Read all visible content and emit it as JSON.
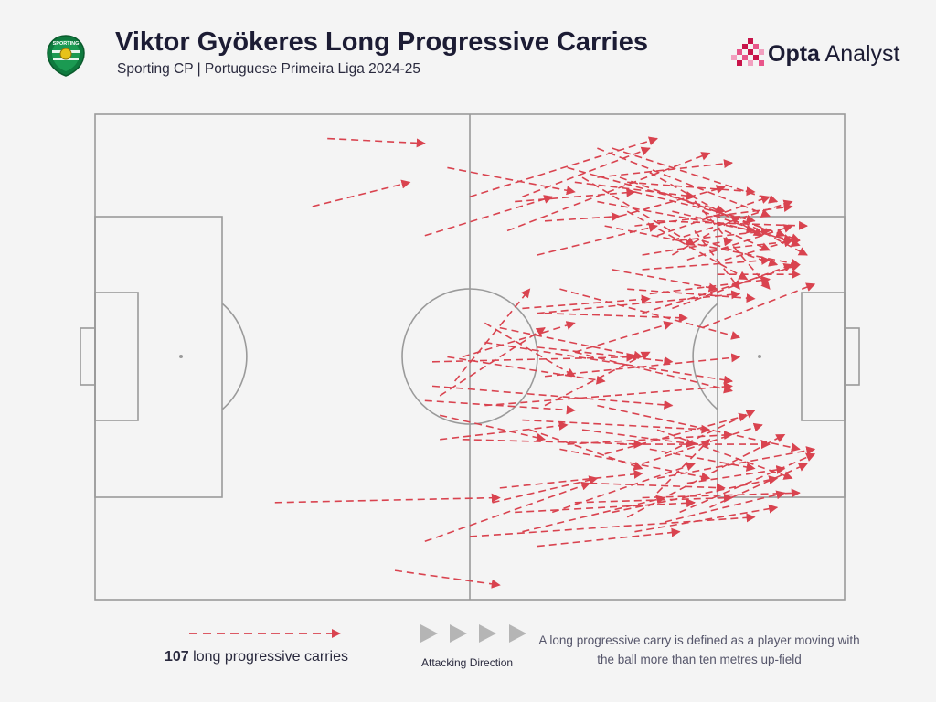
{
  "header": {
    "title": "Viktor Gyökeres Long Progressive Carries",
    "subtitle": "Sporting CP | Portuguese Primeira Liga 2024-25",
    "brand_bold": "Opta",
    "brand_rest": " Analyst",
    "crest_text": "SPORTING"
  },
  "legend": {
    "count": "107",
    "count_label": " long progressive carries",
    "direction_label": "Attacking Direction",
    "definition": "A long progressive carry is defined as a player moving with the ball more than ten metres up-field"
  },
  "colors": {
    "arrow": "#d9434f",
    "pitch_line": "#9a9a9a",
    "background": "#f4f4f4",
    "direction_triangle": "#b5b5b5"
  },
  "chart_data": {
    "type": "carry-map",
    "title": "Viktor Gyökeres Long Progressive Carries",
    "subtitle": "Sporting CP | Portuguese Primeira Liga 2024-25",
    "pitch": {
      "length": 100,
      "width": 100,
      "attacking_direction": "left-to-right"
    },
    "total_carries": 107,
    "carries": [
      [
        31,
        95,
        44,
        94
      ],
      [
        29,
        81,
        42,
        86
      ],
      [
        47,
        89,
        64,
        84
      ],
      [
        50,
        83,
        75,
        95
      ],
      [
        56,
        82,
        72,
        84
      ],
      [
        60,
        78,
        70,
        79
      ],
      [
        59,
        71,
        75,
        77
      ],
      [
        44,
        75,
        61,
        83
      ],
      [
        57,
        83,
        74,
        93
      ],
      [
        55,
        76,
        82,
        92
      ],
      [
        67,
        87,
        85,
        90
      ],
      [
        52,
        57,
        64,
        46
      ],
      [
        65,
        87,
        80,
        73
      ],
      [
        62,
        64,
        86,
        54
      ],
      [
        60,
        59,
        79,
        58
      ],
      [
        70,
        79,
        84,
        85
      ],
      [
        63,
        89,
        84,
        80
      ],
      [
        67,
        93,
        90,
        79
      ],
      [
        69,
        93,
        91,
        82
      ],
      [
        71,
        86,
        88,
        84
      ],
      [
        64,
        86,
        80,
        83
      ],
      [
        67,
        82,
        88,
        76
      ],
      [
        72,
        84,
        88,
        78
      ],
      [
        70,
        87,
        92,
        75
      ],
      [
        72,
        77,
        93,
        81
      ],
      [
        73,
        71,
        85,
        74
      ],
      [
        77,
        74,
        93,
        82
      ],
      [
        78,
        74,
        90,
        76
      ],
      [
        74,
        88,
        89,
        75
      ],
      [
        75,
        78,
        95,
        77
      ],
      [
        77,
        80,
        93,
        74
      ],
      [
        79,
        82,
        94,
        74
      ],
      [
        75,
        75,
        90,
        83
      ],
      [
        81,
        80,
        94,
        73
      ],
      [
        79,
        70,
        93,
        77
      ],
      [
        82,
        72,
        94,
        74
      ],
      [
        84,
        76,
        90,
        72
      ],
      [
        73,
        68,
        90,
        70
      ],
      [
        71,
        80,
        87,
        66
      ],
      [
        69,
        68,
        83,
        64
      ],
      [
        68,
        77,
        94,
        69
      ],
      [
        79,
        84,
        90,
        64
      ],
      [
        81,
        74,
        91,
        69
      ],
      [
        83,
        67,
        94,
        67
      ],
      [
        85,
        79,
        95,
        71
      ],
      [
        84,
        70,
        93,
        74
      ],
      [
        80,
        76,
        86,
        64
      ],
      [
        59,
        59,
        86,
        63
      ],
      [
        77,
        71,
        86,
        79
      ],
      [
        73,
        59,
        94,
        69
      ],
      [
        71,
        64,
        88,
        62
      ],
      [
        74,
        63,
        90,
        66
      ],
      [
        77,
        60,
        93,
        69
      ],
      [
        81,
        56,
        96,
        65
      ],
      [
        64,
        51,
        77,
        57
      ],
      [
        57,
        60,
        74,
        62
      ],
      [
        54,
        56,
        73,
        50
      ],
      [
        59,
        52,
        77,
        49
      ],
      [
        60,
        46,
        86,
        50
      ],
      [
        64,
        51,
        85,
        43
      ],
      [
        52,
        53,
        85,
        45
      ],
      [
        49,
        50,
        64,
        57
      ],
      [
        48,
        45,
        58,
        64
      ],
      [
        45,
        49,
        72,
        50
      ],
      [
        46,
        42,
        60,
        56
      ],
      [
        47,
        50,
        68,
        45
      ],
      [
        45,
        44,
        77,
        40
      ],
      [
        60,
        40,
        74,
        51
      ],
      [
        44,
        41,
        64,
        39
      ],
      [
        46,
        33,
        63,
        36
      ],
      [
        46,
        38,
        60,
        33
      ],
      [
        49,
        33,
        73,
        32
      ],
      [
        52,
        40,
        85,
        44
      ],
      [
        57,
        37,
        82,
        35
      ],
      [
        63,
        32,
        85,
        34
      ],
      [
        58,
        35,
        73,
        27
      ],
      [
        65,
        35,
        80,
        32
      ],
      [
        67,
        40,
        94,
        31
      ],
      [
        73,
        28,
        89,
        36
      ],
      [
        75,
        35,
        93,
        25
      ],
      [
        70,
        32,
        90,
        32
      ],
      [
        74,
        31,
        88,
        27
      ],
      [
        75,
        25,
        96,
        31
      ],
      [
        79,
        24,
        92,
        27
      ],
      [
        73,
        21,
        94,
        22
      ],
      [
        78,
        18,
        96,
        30
      ],
      [
        82,
        19,
        95,
        28
      ],
      [
        71,
        17,
        92,
        34
      ],
      [
        76,
        30,
        88,
        39
      ],
      [
        68,
        30,
        87,
        38
      ],
      [
        75,
        22,
        82,
        33
      ],
      [
        62,
        31,
        82,
        25
      ],
      [
        66,
        24,
        84,
        23
      ],
      [
        64,
        20,
        85,
        21
      ],
      [
        69,
        18,
        91,
        25
      ],
      [
        54,
        23,
        73,
        26
      ],
      [
        50,
        13,
        88,
        17
      ],
      [
        57,
        14,
        76,
        21
      ],
      [
        53,
        20,
        67,
        25
      ],
      [
        59,
        11,
        78,
        14
      ],
      [
        61,
        18,
        80,
        28
      ],
      [
        72,
        14,
        91,
        19
      ],
      [
        24,
        20,
        54,
        21
      ],
      [
        44,
        12,
        66,
        24
      ],
      [
        56,
        18,
        80,
        20
      ],
      [
        76,
        16,
        92,
        22
      ],
      [
        40,
        6,
        54,
        3
      ]
    ]
  }
}
